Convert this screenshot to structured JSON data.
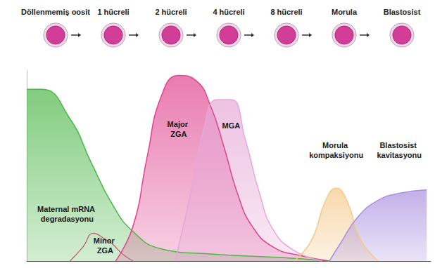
{
  "chart_data": {
    "type": "area",
    "stages": [
      "Döllenmemiş oosit",
      "1 hücreli",
      "2 hücreli",
      "4 hücreli",
      "8 hücreli",
      "Morula",
      "Blastosist"
    ],
    "xlim": [
      0,
      100
    ],
    "ylim": [
      0,
      110
    ],
    "tick_labels": false,
    "grid": false,
    "series": [
      {
        "name": "Maternal mRNA degradasyonu",
        "type": "area",
        "color": "#4cb748",
        "x": [
          0,
          3.8,
          10.7,
          15.9,
          21.1,
          26.3,
          33.3,
          45.4,
          62.7,
          74.9
        ],
        "values": [
          99,
          99,
          82,
          57,
          33,
          17,
          7,
          4,
          2,
          0
        ]
      },
      {
        "name": "Minor ZGA",
        "type": "line",
        "color": "#b85a6a",
        "x": [
          10.7,
          13.9,
          16.5,
          19.1,
          21.1,
          23.7,
          26.3
        ],
        "values": [
          0,
          8,
          16,
          13,
          10,
          4,
          0
        ]
      },
      {
        "name": "Major ZGA",
        "type": "area",
        "color": "#e0448f",
        "x": [
          22,
          26.3,
          29.8,
          33.3,
          37.6,
          41.9,
          45.4,
          48.9,
          52.3,
          55.8,
          61,
          67.9,
          74.9
        ],
        "values": [
          0,
          20,
          60,
          95,
          107,
          104,
          90,
          65,
          38,
          20,
          8,
          3,
          0
        ]
      },
      {
        "name": "MGA",
        "type": "area",
        "color": "#e6a8d6",
        "x": [
          36.7,
          40.2,
          43.7,
          47.1,
          50.6,
          54.1,
          57.5,
          61,
          66.2,
          73.1
        ],
        "values": [
          0,
          35,
          75,
          93,
          93,
          70,
          40,
          18,
          6,
          0
        ]
      },
      {
        "name": "Morula kompaksiyonu",
        "type": "area",
        "color": "#f5c98a",
        "x": [
          66.2,
          70.5,
          74,
          76.6,
          79.2,
          82.7,
          87
        ],
        "values": [
          0,
          12,
          35,
          42,
          35,
          12,
          0
        ]
      },
      {
        "name": "Blastosist kavitasyonu",
        "type": "area",
        "color": "#a98fe0",
        "x": [
          74.9,
          77.6,
          81.8,
          87,
          92.2,
          99
        ],
        "values": [
          0,
          10,
          25,
          35,
          39,
          41
        ]
      }
    ]
  }
}
